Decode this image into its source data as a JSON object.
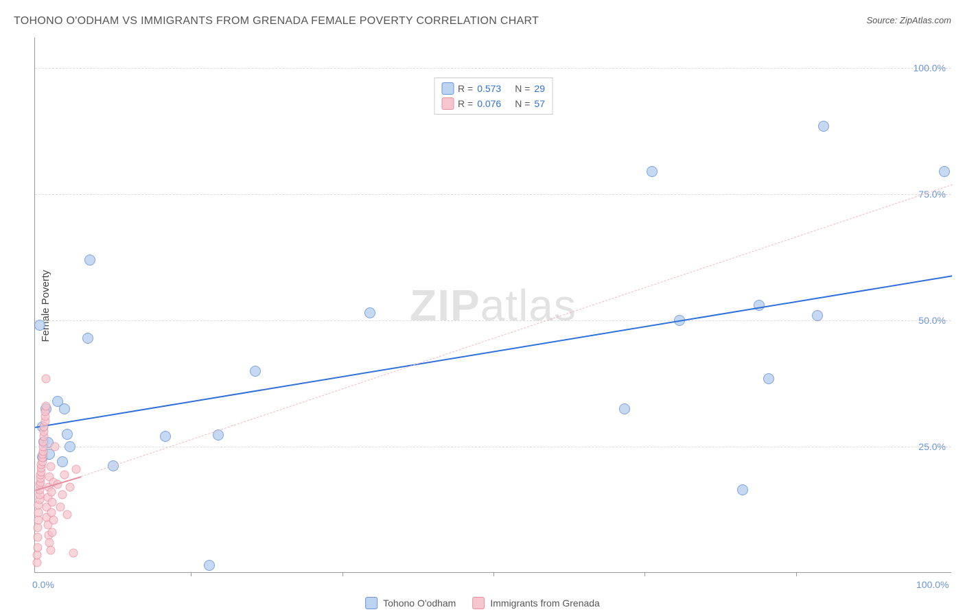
{
  "title": "TOHONO O'ODHAM VS IMMIGRANTS FROM GRENADA FEMALE POVERTY CORRELATION CHART",
  "source": "Source: ZipAtlas.com",
  "watermark": {
    "bold": "ZIP",
    "rest": "atlas"
  },
  "chart": {
    "type": "scatter",
    "xlim": [
      0,
      100
    ],
    "ylim": [
      0,
      106
    ],
    "ylabel": "Female Poverty",
    "yticks": [
      {
        "v": 25,
        "label": "25.0%"
      },
      {
        "v": 50,
        "label": "50.0%"
      },
      {
        "v": 75,
        "label": "75.0%"
      },
      {
        "v": 100,
        "label": "100.0%"
      }
    ],
    "xticks_minor": [
      17,
      33.5,
      50,
      66.5,
      83
    ],
    "xtick_labels": [
      {
        "v": 0,
        "label": "0.0%"
      },
      {
        "v": 100,
        "label": "100.0%"
      }
    ],
    "background_color": "#ffffff",
    "grid_color": "#dddddd",
    "axis_color": "#999999",
    "tick_label_color": "#6b93d6",
    "series": [
      {
        "name": "Tohono O'odham",
        "marker_color_fill": "#bcd3f2",
        "marker_color_stroke": "#6b93d6",
        "marker_size": 16,
        "marker_opacity": 0.85,
        "R": "0.573",
        "N": "29",
        "trend": {
          "x1": 0,
          "y1": 29,
          "x2": 100,
          "y2": 59,
          "color": "#2e6fd9",
          "width": 2.5,
          "dash": "solid"
        },
        "extrap": null,
        "points": [
          [
            0.5,
            49
          ],
          [
            0.8,
            29
          ],
          [
            0.8,
            23
          ],
          [
            1.0,
            26
          ],
          [
            1.2,
            32.5
          ],
          [
            1.4,
            25.8
          ],
          [
            1.6,
            23.5
          ],
          [
            2.5,
            34
          ],
          [
            3.0,
            22
          ],
          [
            3.2,
            32.5
          ],
          [
            3.5,
            27.5
          ],
          [
            3.8,
            25
          ],
          [
            5.8,
            46.5
          ],
          [
            6.0,
            62
          ],
          [
            8.5,
            21.2
          ],
          [
            14.2,
            27
          ],
          [
            19.0,
            1.5
          ],
          [
            20.0,
            27.3
          ],
          [
            24.0,
            40
          ],
          [
            36.5,
            51.5
          ],
          [
            64.3,
            32.5
          ],
          [
            67.3,
            79.5
          ],
          [
            70.3,
            50
          ],
          [
            77.2,
            16.5
          ],
          [
            79.0,
            53
          ],
          [
            80.0,
            38.5
          ],
          [
            85.3,
            51
          ],
          [
            86.0,
            88.5
          ],
          [
            99.2,
            79.5
          ]
        ]
      },
      {
        "name": "Immigrants from Grenada",
        "marker_color_fill": "#f6c6cf",
        "marker_color_stroke": "#e68fa0",
        "marker_size": 13,
        "marker_opacity": 0.75,
        "R": "0.076",
        "N": "57",
        "trend": {
          "x1": 0,
          "y1": 16.5,
          "x2": 5,
          "y2": 19.2,
          "color": "#e68fa0",
          "width": 2,
          "dash": "solid"
        },
        "extrap": {
          "x1": 5,
          "y1": 19.2,
          "x2": 100,
          "y2": 77,
          "color": "#f2b8c2",
          "width": 1,
          "dash": "dashed"
        },
        "points": [
          [
            0.2,
            2
          ],
          [
            0.2,
            3.5
          ],
          [
            0.3,
            5
          ],
          [
            0.3,
            7
          ],
          [
            0.3,
            9
          ],
          [
            0.4,
            10.5
          ],
          [
            0.4,
            12
          ],
          [
            0.4,
            13.5
          ],
          [
            0.5,
            14.5
          ],
          [
            0.5,
            15.5
          ],
          [
            0.5,
            16.5
          ],
          [
            0.5,
            17.5
          ],
          [
            0.6,
            18
          ],
          [
            0.6,
            18.8
          ],
          [
            0.6,
            19.5
          ],
          [
            0.7,
            20
          ],
          [
            0.7,
            20.8
          ],
          [
            0.7,
            21.5
          ],
          [
            0.8,
            22
          ],
          [
            0.8,
            22.8
          ],
          [
            0.8,
            23.5
          ],
          [
            0.9,
            24
          ],
          [
            0.9,
            25
          ],
          [
            0.9,
            26
          ],
          [
            1.0,
            27
          ],
          [
            1.0,
            28
          ],
          [
            1.0,
            29
          ],
          [
            1.1,
            30
          ],
          [
            1.1,
            31
          ],
          [
            1.1,
            32
          ],
          [
            1.2,
            33
          ],
          [
            1.2,
            38.5
          ],
          [
            1.3,
            11
          ],
          [
            1.3,
            13
          ],
          [
            1.4,
            9.5
          ],
          [
            1.4,
            15
          ],
          [
            1.5,
            7.5
          ],
          [
            1.5,
            17
          ],
          [
            1.6,
            6
          ],
          [
            1.6,
            19
          ],
          [
            1.7,
            4.5
          ],
          [
            1.7,
            21
          ],
          [
            1.8,
            12
          ],
          [
            1.8,
            16
          ],
          [
            1.9,
            8
          ],
          [
            1.9,
            14
          ],
          [
            2.0,
            10.5
          ],
          [
            2.0,
            18
          ],
          [
            2.2,
            25
          ],
          [
            2.5,
            17.5
          ],
          [
            2.8,
            13
          ],
          [
            3.0,
            15.5
          ],
          [
            3.2,
            19.5
          ],
          [
            3.5,
            11.5
          ],
          [
            3.8,
            17
          ],
          [
            4.2,
            4
          ],
          [
            4.5,
            20.5
          ]
        ]
      }
    ],
    "legend_bottom": [
      {
        "swatch_fill": "#bcd3f2",
        "swatch_stroke": "#6b93d6",
        "label": "Tohono O'odham"
      },
      {
        "swatch_fill": "#f6c6cf",
        "swatch_stroke": "#e68fa0",
        "label": "Immigrants from Grenada"
      }
    ]
  }
}
